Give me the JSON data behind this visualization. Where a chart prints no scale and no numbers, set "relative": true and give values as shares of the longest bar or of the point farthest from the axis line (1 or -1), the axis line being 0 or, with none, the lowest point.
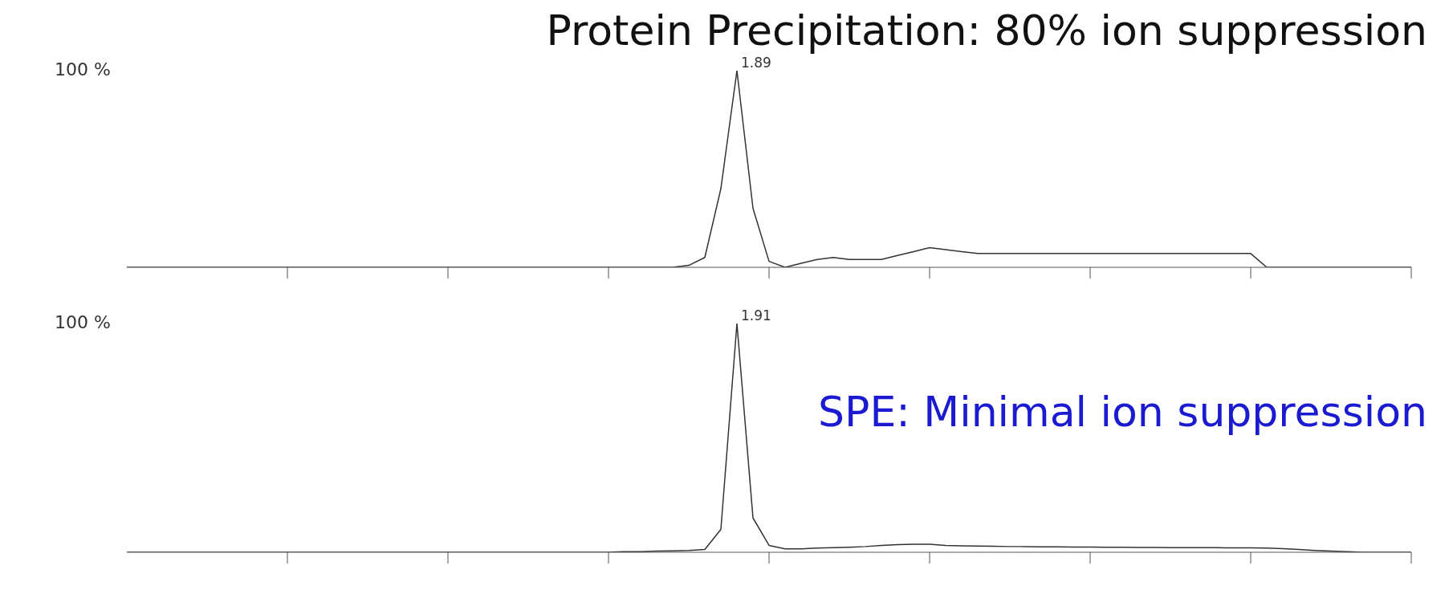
{
  "chart_data": [
    {
      "type": "line",
      "title": "Protein Precipitation: 80% ion suppression",
      "color": "#333333",
      "relative": true,
      "categories": [
        null,
        null,
        null,
        null,
        null,
        null,
        null,
        null,
        null,
        null,
        null,
        null,
        null,
        null,
        null,
        null,
        null,
        null,
        null,
        null,
        null,
        null,
        null,
        null,
        null,
        null,
        null,
        null,
        null,
        null,
        null,
        null,
        null,
        null,
        null,
        null,
        null,
        null,
        null,
        null,
        null,
        null,
        null,
        null,
        null,
        null,
        null,
        null,
        null,
        null,
        null,
        null,
        null,
        null,
        null,
        null,
        null,
        null,
        null,
        null,
        null,
        null,
        null,
        null,
        null,
        null,
        null,
        null,
        null,
        null,
        null,
        null,
        null,
        null,
        null,
        null,
        null,
        null,
        null,
        null,
        null
      ],
      "values": [
        0,
        0,
        0,
        0,
        0,
        0,
        0,
        0,
        0,
        0,
        0,
        0,
        0,
        0,
        0,
        0,
        0,
        0,
        0,
        0,
        0,
        0,
        0,
        0,
        0,
        0,
        0,
        0,
        0,
        0,
        0,
        0,
        0,
        0,
        0,
        0.01,
        0.05,
        0.4,
        1,
        0.3,
        0.03,
        0,
        0.02,
        0.04,
        0.05,
        0.04,
        0.04,
        0.04,
        0.06,
        0.08,
        0.1,
        0.09,
        0.08,
        0.07,
        0.07,
        0.07,
        0.07,
        0.07,
        0.07,
        0.07,
        0.07,
        0.07,
        0.07,
        0.07,
        0.07,
        0.07,
        0.07,
        0.07,
        0.07,
        0.07,
        0.07,
        0,
        0,
        0,
        0,
        0,
        0,
        0,
        0,
        0,
        0
      ],
      "annotations": [
        "100 %",
        "1.89"
      ]
    },
    {
      "type": "line",
      "title": "SPE: Minimal ion suppression",
      "color": "#333333",
      "relative": true,
      "categories": [
        null,
        null,
        null,
        null,
        null,
        null,
        null,
        null,
        null,
        null,
        null,
        null,
        null,
        null,
        null,
        null,
        null,
        null,
        null,
        null,
        null,
        null,
        null,
        null,
        null,
        null,
        null,
        null,
        null,
        null,
        null,
        null,
        null,
        null,
        null,
        null,
        null,
        null,
        null,
        null,
        null,
        null,
        null,
        null,
        null,
        null,
        null,
        null,
        null,
        null,
        null,
        null,
        null,
        null,
        null,
        null,
        null,
        null,
        null,
        null,
        null,
        null,
        null,
        null,
        null,
        null,
        null,
        null,
        null,
        null,
        null,
        null,
        null,
        null,
        null,
        null,
        null,
        null,
        null,
        null,
        null
      ],
      "values": [
        0,
        0,
        0,
        0,
        0,
        0,
        0,
        0,
        0,
        0,
        0,
        0,
        0,
        0,
        0,
        0,
        0,
        0,
        0,
        0,
        0,
        0,
        0,
        0,
        0,
        0,
        0,
        0,
        0,
        0,
        0,
        0.003,
        0.003,
        0.005,
        0.006,
        0.008,
        0.012,
        0.1,
        1,
        0.15,
        0.03,
        0.015,
        0.015,
        0.018,
        0.02,
        0.022,
        0.025,
        0.03,
        0.033,
        0.035,
        0.035,
        0.03,
        0.028,
        0.027,
        0.026,
        0.025,
        0.025,
        0.024,
        0.024,
        0.023,
        0.023,
        0.022,
        0.022,
        0.021,
        0.021,
        0.02,
        0.02,
        0.02,
        0.02,
        0.019,
        0.019,
        0.018,
        0.016,
        0.012,
        0.008,
        0.005,
        0.003,
        0,
        0,
        0,
        0
      ],
      "annotations": [
        "100 %",
        "1.91"
      ]
    }
  ]
}
